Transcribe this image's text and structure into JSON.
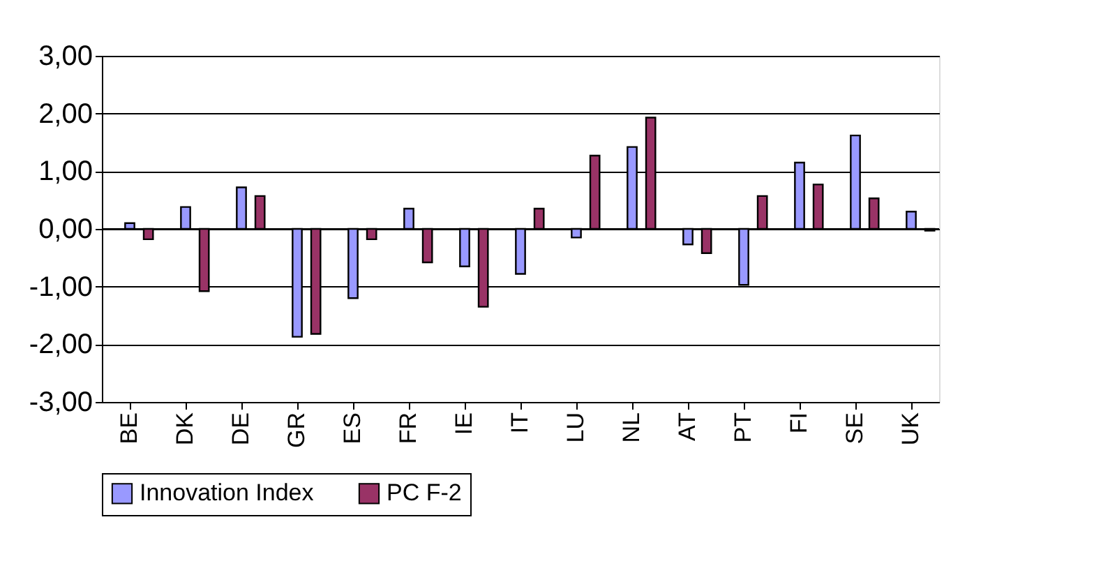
{
  "chart_data": {
    "type": "bar",
    "categories": [
      "BE",
      "DK",
      "DE",
      "GR",
      "ES",
      "FR",
      "IE",
      "IT",
      "LU",
      "NL",
      "AT",
      "PT",
      "FI",
      "SE",
      "UK"
    ],
    "series": [
      {
        "name": "Innovation Index",
        "color": "#9999ff",
        "values": [
          0.1,
          0.38,
          0.72,
          -1.87,
          -1.2,
          0.35,
          -0.65,
          -0.78,
          -0.15,
          1.42,
          -0.27,
          -0.97,
          1.15,
          1.62,
          0.3
        ]
      },
      {
        "name": "PC F-2",
        "color": "#993366",
        "values": [
          -0.18,
          -1.08,
          0.57,
          -1.82,
          -0.18,
          -0.58,
          -1.35,
          0.35,
          1.27,
          1.93,
          -0.42,
          0.57,
          0.77,
          0.53,
          -0.03
        ]
      }
    ],
    "ylim": [
      -3,
      3
    ],
    "yticks": [
      {
        "value": -3,
        "label": "-3,00"
      },
      {
        "value": -2,
        "label": "-2,00"
      },
      {
        "value": -1,
        "label": "-1,00"
      },
      {
        "value": 0,
        "label": "0,00"
      },
      {
        "value": 1,
        "label": "1,00"
      },
      {
        "value": 2,
        "label": "2,00"
      },
      {
        "value": 3,
        "label": "3,00"
      }
    ],
    "grid": "y",
    "legend": "bottom"
  }
}
